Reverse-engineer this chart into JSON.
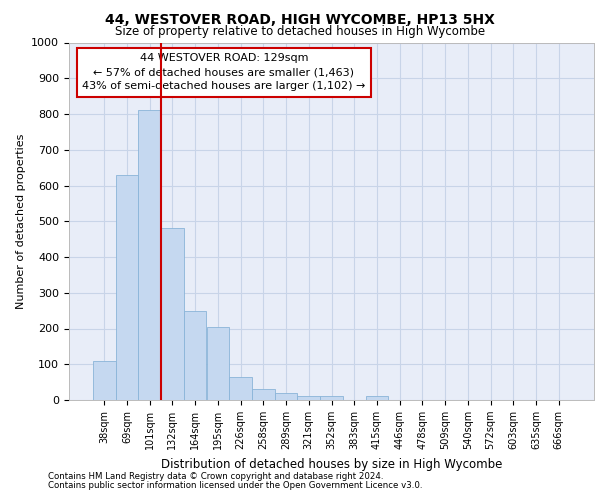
{
  "title_line1": "44, WESTOVER ROAD, HIGH WYCOMBE, HP13 5HX",
  "title_line2": "Size of property relative to detached houses in High Wycombe",
  "xlabel": "Distribution of detached houses by size in High Wycombe",
  "ylabel": "Number of detached properties",
  "footnote1": "Contains HM Land Registry data © Crown copyright and database right 2024.",
  "footnote2": "Contains public sector information licensed under the Open Government Licence v3.0.",
  "bar_labels": [
    "38sqm",
    "69sqm",
    "101sqm",
    "132sqm",
    "164sqm",
    "195sqm",
    "226sqm",
    "258sqm",
    "289sqm",
    "321sqm",
    "352sqm",
    "383sqm",
    "415sqm",
    "446sqm",
    "478sqm",
    "509sqm",
    "540sqm",
    "572sqm",
    "603sqm",
    "635sqm",
    "666sqm"
  ],
  "bar_values": [
    110,
    630,
    810,
    480,
    250,
    205,
    65,
    30,
    20,
    10,
    10,
    0,
    10,
    0,
    0,
    0,
    0,
    0,
    0,
    0,
    0
  ],
  "bar_color": "#c5d8f0",
  "bar_edgecolor": "#8ab4d8",
  "vline_index": 3,
  "ylim": [
    0,
    1000
  ],
  "yticks": [
    0,
    100,
    200,
    300,
    400,
    500,
    600,
    700,
    800,
    900,
    1000
  ],
  "annotation_title": "44 WESTOVER ROAD: 129sqm",
  "annotation_line2": "← 57% of detached houses are smaller (1,463)",
  "annotation_line3": "43% of semi-detached houses are larger (1,102) →",
  "annotation_box_color": "#ffffff",
  "annotation_box_edgecolor": "#cc0000",
  "vline_color": "#cc0000",
  "grid_color": "#c8d4e8",
  "bg_color": "#e8edf8",
  "fig_bg_color": "#ffffff"
}
